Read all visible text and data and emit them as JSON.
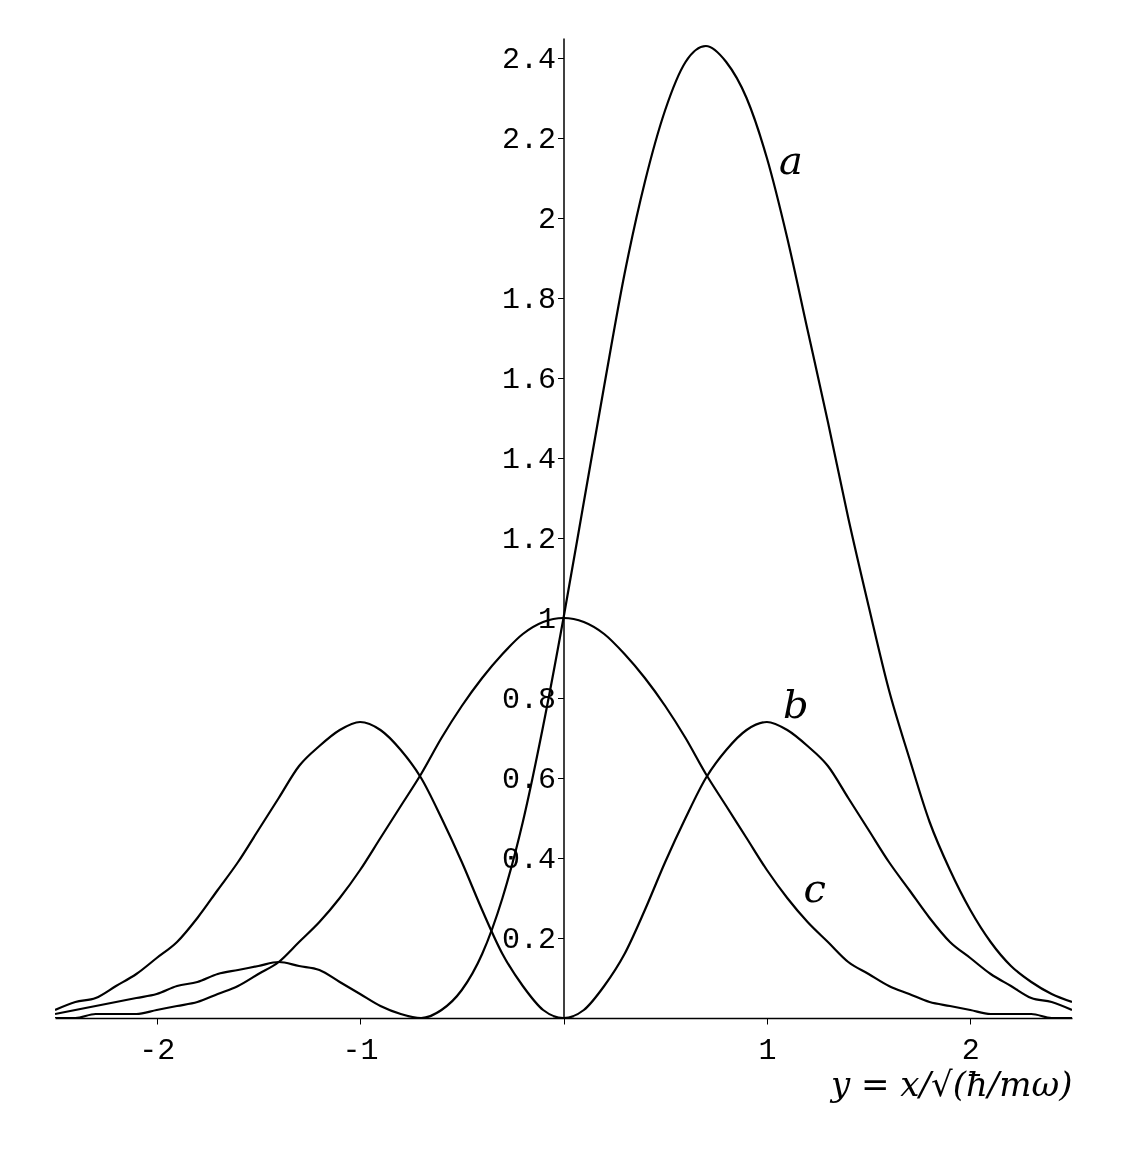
{
  "chart_data": {
    "type": "line",
    "xlabel": "y = x/√(ħ/mω)",
    "x": [
      -2.5,
      -2.4,
      -2.3,
      -2.2,
      -2.1,
      -2.0,
      -1.9,
      -1.8,
      -1.7,
      -1.6,
      -1.5,
      -1.4,
      -1.3,
      -1.2,
      -1.1,
      -1.0,
      -0.9,
      -0.8,
      -0.7,
      -0.6,
      -0.5,
      -0.4,
      -0.3,
      -0.2,
      -0.1,
      0,
      0.1,
      0.2,
      0.3,
      0.4,
      0.5,
      0.6,
      0.7,
      0.8,
      0.9,
      1.0,
      1.1,
      1.2,
      1.3,
      1.4,
      1.5,
      1.6,
      1.7,
      1.8,
      1.9,
      2.0,
      2.1,
      2.2,
      2.3,
      2.4,
      2.5
    ],
    "series": [
      {
        "color": "#000000",
        "values": [
          0.01,
          0.02,
          0.03,
          0.04,
          0.05,
          0.06,
          0.08,
          0.09,
          0.11,
          0.12,
          0.13,
          0.14,
          0.13,
          0.12,
          0.09,
          0.06,
          0.03,
          0.01,
          0.0,
          0.02,
          0.07,
          0.16,
          0.3,
          0.49,
          0.73,
          1.0,
          1.29,
          1.58,
          1.86,
          2.09,
          2.27,
          2.39,
          2.43,
          2.39,
          2.3,
          2.15,
          1.95,
          1.72,
          1.49,
          1.25,
          1.03,
          0.82,
          0.65,
          0.49,
          0.37,
          0.27,
          0.19,
          0.13,
          0.09,
          0.06,
          0.04
        ]
      },
      {
        "color": "#000000",
        "values": [
          0.02,
          0.04,
          0.05,
          0.08,
          0.11,
          0.15,
          0.19,
          0.25,
          0.32,
          0.39,
          0.47,
          0.55,
          0.63,
          0.68,
          0.72,
          0.74,
          0.72,
          0.67,
          0.6,
          0.5,
          0.39,
          0.27,
          0.16,
          0.08,
          0.02,
          0,
          0.02,
          0.08,
          0.16,
          0.27,
          0.39,
          0.5,
          0.6,
          0.67,
          0.72,
          0.74,
          0.72,
          0.68,
          0.63,
          0.55,
          0.47,
          0.39,
          0.32,
          0.25,
          0.19,
          0.15,
          0.11,
          0.08,
          0.05,
          0.04,
          0.02
        ]
      },
      {
        "color": "#000000",
        "values": [
          0.0,
          0.0,
          0.01,
          0.01,
          0.01,
          0.02,
          0.03,
          0.04,
          0.06,
          0.08,
          0.11,
          0.14,
          0.19,
          0.24,
          0.3,
          0.37,
          0.45,
          0.53,
          0.61,
          0.7,
          0.78,
          0.85,
          0.91,
          0.96,
          0.99,
          1.0,
          0.99,
          0.96,
          0.91,
          0.85,
          0.78,
          0.7,
          0.61,
          0.53,
          0.45,
          0.37,
          0.3,
          0.24,
          0.19,
          0.14,
          0.11,
          0.08,
          0.06,
          0.04,
          0.03,
          0.02,
          0.01,
          0.01,
          0.01,
          0.0,
          0.0
        ]
      }
    ],
    "xlim": [
      -2.5,
      2.5
    ],
    "xticks": [
      -2,
      -1,
      {
        "value": 0,
        "label": null
      },
      1,
      2
    ],
    "ylim": [
      0,
      2.45
    ],
    "yticks": [
      {
        "value": 0,
        "label": null
      },
      0.2,
      0.4,
      0.6,
      0.8,
      1,
      1.2,
      1.4,
      1.6,
      1.8,
      2,
      2.2,
      2.4
    ],
    "annotations": [
      {
        "text": "a",
        "x": 1.03,
        "y": 2.09
      },
      {
        "text": "b",
        "x": 1.05,
        "y": 0.73
      },
      {
        "text": "c",
        "x": 1.15,
        "y": 0.27
      }
    ]
  }
}
